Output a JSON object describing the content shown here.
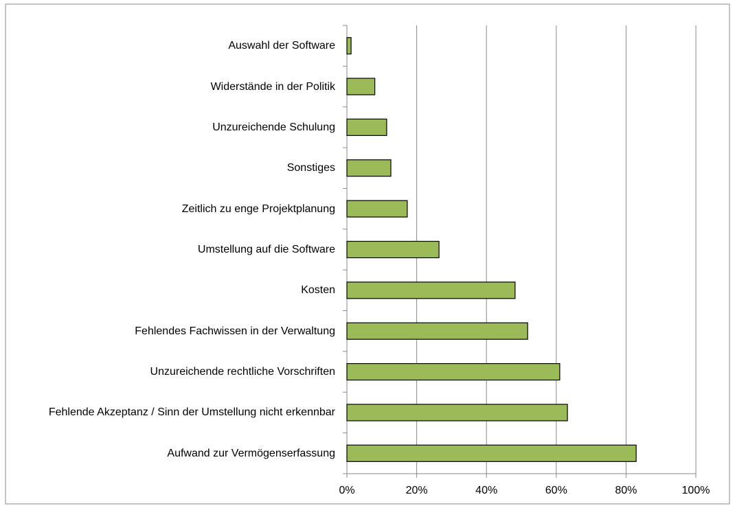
{
  "chart_data": {
    "type": "barh",
    "categories": [
      "Auswahl der Software",
      "Widerstände in der Politik",
      "Unzureichende Schulung",
      "Sonstiges",
      "Zeitlich zu enge Projektplanung",
      "Umstellung auf die Software",
      "Kosten",
      "Fehlendes Fachwissen in der Verwaltung",
      "Unzureichende rechtliche Vorschriften",
      "Fehlende Akzeptanz / Sinn der Umstellung nicht erkennbar",
      "Aufwand zur Vermögenserfassung"
    ],
    "values": [
      1.2,
      8,
      11.4,
      12.6,
      17.3,
      26.4,
      48.2,
      51.8,
      61,
      63.2,
      82.9
    ],
    "color": "#9bbb59",
    "xlim": [
      0,
      100
    ],
    "xticks": [
      {
        "value": 0,
        "label": "0%"
      },
      {
        "value": 20,
        "label": "20%"
      },
      {
        "value": 40,
        "label": "40%"
      },
      {
        "value": 60,
        "label": "60%"
      },
      {
        "value": 80,
        "label": "80%"
      },
      {
        "value": 100,
        "label": "100%"
      }
    ],
    "grid": true
  }
}
